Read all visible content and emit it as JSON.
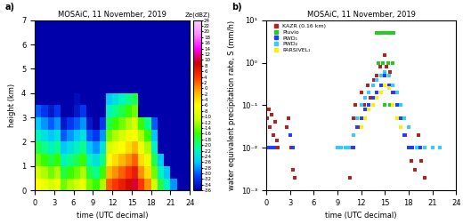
{
  "chart_data": [
    {
      "type": "heatmap",
      "panel_label": "a)",
      "title": "MOSAiC, 11 November, 2019",
      "x_label": "time (UTC decimal)",
      "y_label": "height (km)",
      "xlim": [
        0,
        24
      ],
      "xticks": [
        0,
        3,
        6,
        9,
        12,
        15,
        18,
        21,
        24
      ],
      "ylim": [
        0,
        7
      ],
      "yticks": [
        0,
        1,
        2,
        3,
        4,
        5,
        6,
        7
      ],
      "x_edges": [
        0,
        1,
        2,
        3,
        4,
        5,
        6,
        7,
        8,
        9,
        10,
        11,
        12,
        13,
        14,
        15,
        16,
        17,
        18,
        19,
        20,
        21,
        22,
        23,
        24
      ],
      "y_edges": [
        0,
        0.5,
        1,
        1.5,
        2,
        2.5,
        3,
        3.5,
        4
      ],
      "z": [
        [
          -6,
          -8,
          -10,
          -8,
          -14,
          -12,
          -10,
          -8,
          -14,
          -16,
          -12,
          2,
          4,
          6,
          8,
          10,
          4,
          0,
          -10,
          -18,
          -22,
          -28,
          null,
          null
        ],
        [
          -10,
          -12,
          -14,
          -12,
          -18,
          -16,
          -14,
          -12,
          -18,
          -20,
          -16,
          -2,
          0,
          2,
          4,
          6,
          0,
          -4,
          -14,
          -22,
          -26,
          null,
          null,
          null
        ],
        [
          -14,
          -16,
          -18,
          -16,
          -22,
          -20,
          -18,
          -16,
          -22,
          -24,
          -20,
          -6,
          -4,
          -2,
          0,
          2,
          -4,
          -8,
          -18,
          -26,
          null,
          null,
          null,
          null
        ],
        [
          -18,
          -20,
          -22,
          -20,
          -26,
          -24,
          -22,
          -20,
          -26,
          -28,
          -24,
          -10,
          -8,
          -6,
          -4,
          -2,
          -8,
          -12,
          -22,
          null,
          null,
          null,
          null,
          null
        ],
        [
          -22,
          -24,
          -26,
          -24,
          -30,
          -28,
          -26,
          -24,
          -30,
          -32,
          -28,
          -14,
          -12,
          -10,
          -8,
          -6,
          -12,
          -16,
          -26,
          null,
          null,
          null,
          null,
          null
        ],
        [
          -26,
          -28,
          -30,
          -28,
          -34,
          -32,
          -30,
          -28,
          -34,
          null,
          -32,
          -18,
          -16,
          -14,
          -12,
          -10,
          -16,
          -20,
          -30,
          null,
          null,
          null,
          null,
          null
        ],
        [
          -30,
          -32,
          -34,
          -32,
          null,
          null,
          -34,
          -32,
          null,
          null,
          null,
          -22,
          -20,
          -18,
          -16,
          -14,
          null,
          null,
          null,
          null,
          null,
          null,
          null,
          null
        ],
        [
          null,
          null,
          null,
          null,
          null,
          null,
          -35,
          null,
          null,
          null,
          null,
          -26,
          -24,
          -22,
          -20,
          -18,
          null,
          null,
          null,
          null,
          null,
          null,
          null,
          null
        ]
      ],
      "colorbar_label": "Ze(dBZ)",
      "colorbar_range": [
        -36,
        24
      ],
      "colorbar_ticks": [
        -36,
        -34,
        -32,
        -30,
        -28,
        -26,
        -24,
        -22,
        -20,
        -18,
        -16,
        -14,
        -12,
        -10,
        -8,
        -6,
        -4,
        -2,
        0,
        2,
        4,
        6,
        8,
        10,
        12,
        14,
        16,
        18,
        20,
        22,
        24
      ]
    },
    {
      "type": "scatter",
      "panel_label": "b)",
      "title": "MOSAiC, 11 November, 2019",
      "x_label": "time (UTC decimal)",
      "y_label": "water equivalent precipitation rate, S (mm/h)",
      "log": "y",
      "legend": "upper left",
      "marker": "s",
      "xlim": [
        0,
        24
      ],
      "xticks": [
        0,
        3,
        6,
        9,
        12,
        15,
        18,
        21,
        24
      ],
      "ylim": [
        0.001,
        10
      ],
      "yticks": [
        {
          "value": 0.001,
          "label": "10⁻³"
        },
        {
          "value": 0.01,
          "label": "10⁻²"
        },
        {
          "value": 0.1,
          "label": "10⁻¹"
        },
        {
          "value": 1,
          "label": "10⁰"
        },
        {
          "value": 10,
          "label": "10¹"
        }
      ],
      "series": [
        {
          "name": "KAZR (0.16 km)",
          "color": "#b22222",
          "x": [
            0.1,
            0.3,
            0.5,
            0.7,
            0.9,
            1.1,
            1.3,
            1.5,
            2.6,
            2.8,
            3.0,
            3.2,
            3.4,
            3.6,
            10.6,
            10.8,
            11.0,
            11.3,
            11.6,
            12.0,
            12.4,
            12.8,
            13.2,
            13.6,
            14.0,
            14.4,
            14.8,
            15.0,
            15.2,
            15.6,
            16.0,
            16.4,
            16.8,
            17.2,
            17.6,
            18.0,
            18.4,
            18.8,
            19.2,
            19.6,
            20.0
          ],
          "values": [
            0.05,
            0.08,
            0.03,
            0.06,
            0.02,
            0.04,
            0.015,
            0.01,
            0.03,
            0.05,
            0.02,
            0.01,
            0.003,
            0.002,
            0.002,
            0.01,
            0.05,
            0.1,
            0.03,
            0.2,
            0.1,
            0.3,
            0.15,
            0.4,
            0.5,
            0.8,
            1.0,
            1.5,
            0.8,
            0.6,
            0.3,
            0.2,
            0.1,
            0.05,
            0.02,
            0.01,
            0.005,
            0.003,
            0.02,
            0.005,
            0.002
          ]
        },
        {
          "name": "Pluvio",
          "color": "#22cc22",
          "x": [
            14.0,
            14.3,
            14.6,
            14.9,
            15.2,
            15.5,
            15.8,
            16.1,
            14.2,
            14.8,
            15.4,
            16.0,
            15.0,
            15.6
          ],
          "values": [
            5,
            5,
            5,
            5,
            5,
            5,
            5,
            5,
            1,
            1,
            1,
            1,
            0.1,
            0.1
          ]
        },
        {
          "name": "PWD₁",
          "color": "#1f3fff",
          "x": [
            0.2,
            0.6,
            1.0,
            3.0,
            3.4,
            11.0,
            11.5,
            12.0,
            12.5,
            13.0,
            13.5,
            14.0,
            14.5,
            15.0,
            15.5,
            16.0,
            16.5,
            17.0,
            17.5,
            18.0,
            18.5,
            19.0,
            19.5,
            20.0
          ],
          "values": [
            0.01,
            0.01,
            0.01,
            0.02,
            0.01,
            0.01,
            0.03,
            0.05,
            0.08,
            0.1,
            0.15,
            0.2,
            0.3,
            0.5,
            0.3,
            0.2,
            0.1,
            0.05,
            0.02,
            0.01,
            0.01,
            0.01,
            0.01,
            0.01
          ]
        },
        {
          "name": "PWD₂",
          "color": "#33ccff",
          "x": [
            9.0,
            9.5,
            10.0,
            10.5,
            11.0,
            11.5,
            12.0,
            12.5,
            13.0,
            13.5,
            14.0,
            14.5,
            15.0,
            15.5,
            16.0,
            16.5,
            17.0,
            17.5,
            18.0,
            19.0,
            20.0,
            21.0,
            22.0
          ],
          "values": [
            0.01,
            0.01,
            0.01,
            0.01,
            0.02,
            0.05,
            0.1,
            0.15,
            0.2,
            0.3,
            0.4,
            0.5,
            0.6,
            0.5,
            0.3,
            0.2,
            0.1,
            0.05,
            0.03,
            0.01,
            0.01,
            0.01,
            0.01
          ]
        },
        {
          "name": "PARSIVEL₁",
          "color": "#ffee00",
          "x": [
            12.0,
            12.5,
            13.0,
            13.5,
            14.0,
            14.5,
            15.0,
            15.5,
            16.0,
            16.5,
            17.0
          ],
          "values": [
            0.03,
            0.05,
            0.08,
            0.1,
            0.15,
            0.2,
            0.3,
            0.25,
            0.1,
            0.05,
            0.03
          ]
        }
      ]
    }
  ]
}
